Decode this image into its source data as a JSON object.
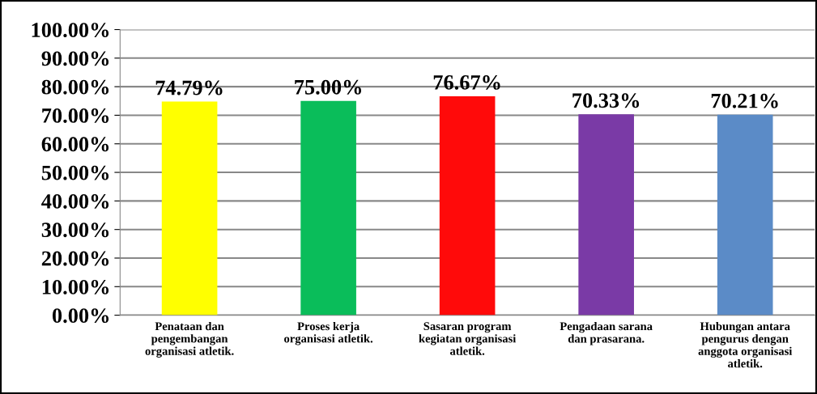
{
  "chart_data": {
    "type": "bar",
    "categories": [
      "Penataan dan\npengembangan\norganisasi atletik.",
      "Proses kerja\norganisasi atletik.",
      "Sasaran program\nkegiatan organisasi\natletik.",
      "Pengadaan sarana\ndan prasarana.",
      "Hubungan antara\npengurus dengan\nanggota organisasi\natletik."
    ],
    "values": [
      74.79,
      75.0,
      76.67,
      70.33,
      70.21
    ],
    "colors": [
      "#ffff00",
      "#0abd5a",
      "#ff0a0a",
      "#7a3aa6",
      "#5b8bc7"
    ],
    "value_labels": [
      "74.79%",
      "75.00%",
      "76.67%",
      "70.33%",
      "70.21%"
    ],
    "ylim": [
      0,
      100
    ],
    "yticks": [
      {
        "value": 0,
        "label": "0.00%"
      },
      {
        "value": 10,
        "label": "10.00%"
      },
      {
        "value": 20,
        "label": "20.00%"
      },
      {
        "value": 30,
        "label": "30.00%"
      },
      {
        "value": 40,
        "label": "40.00%"
      },
      {
        "value": 50,
        "label": "50.00%"
      },
      {
        "value": 60,
        "label": "60.00%"
      },
      {
        "value": 70,
        "label": "70.00%"
      },
      {
        "value": 80,
        "label": "80.00%"
      },
      {
        "value": 90,
        "label": "90.00%"
      },
      {
        "value": 100,
        "label": "100.00%"
      }
    ],
    "grid": "y"
  }
}
